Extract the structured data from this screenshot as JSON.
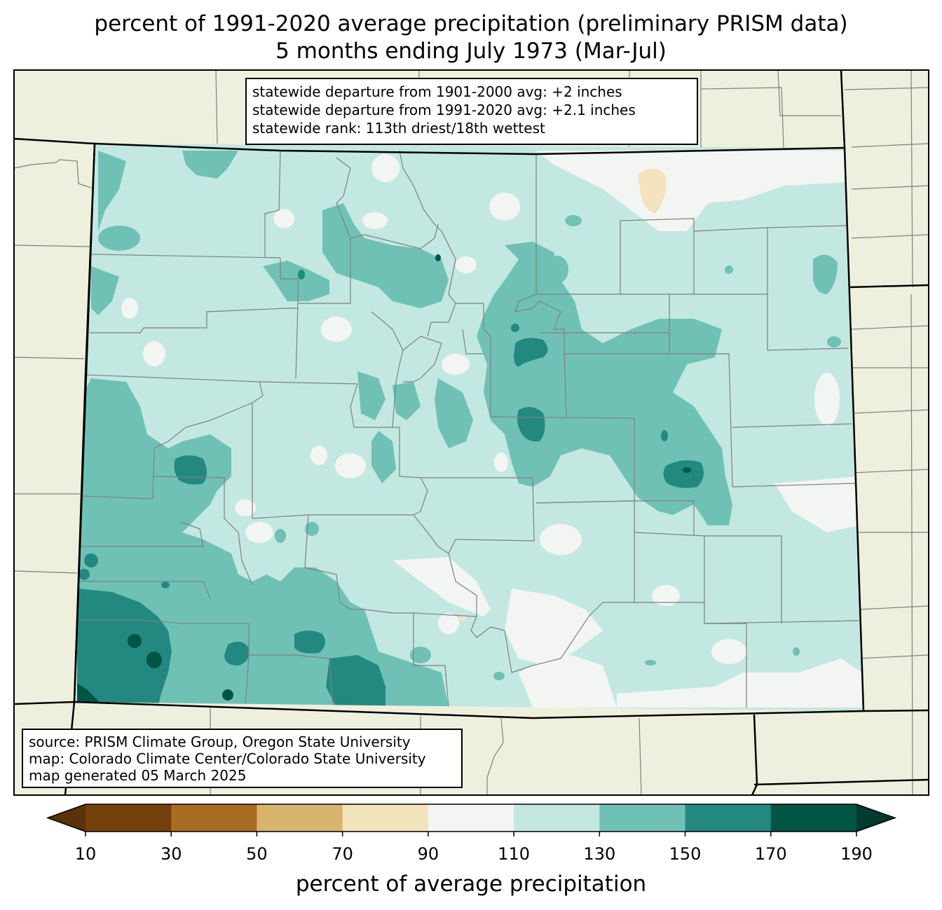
{
  "title": {
    "line1": "percent of 1991-2020 average precipitation (preliminary PRISM data)",
    "line2": "5 months ending July 1973 (Mar-Jul)"
  },
  "stats": {
    "line1": "statewide departure from 1901-2000 avg: +2 inches",
    "line2": "statewide departure from 1991-2020 avg: +2.1 inches",
    "line3": "statewide rank: 113th driest/18th wettest"
  },
  "source": {
    "line1": "source: PRISM Climate Group, Oregon State University",
    "line2": "map: Colorado Climate Center/Colorado State University",
    "line3": "map generated 05 March 2025"
  },
  "colorbar": {
    "label": "percent of average precipitation",
    "ticks": [
      "10",
      "30",
      "50",
      "70",
      "90",
      "110",
      "130",
      "150",
      "170",
      "190"
    ],
    "colors": [
      "#5a3208",
      "#744009",
      "#a76c22",
      "#d8b46d",
      "#f3e3bc",
      "#f3f5f3",
      "#c2e8e1",
      "#6fc1b5",
      "#238980",
      "#005545",
      "#003b2e"
    ]
  },
  "colors": {
    "background": "#efefde",
    "state_fill": "#c2e8e1",
    "border": "#000000",
    "county_line": "#808080"
  }
}
